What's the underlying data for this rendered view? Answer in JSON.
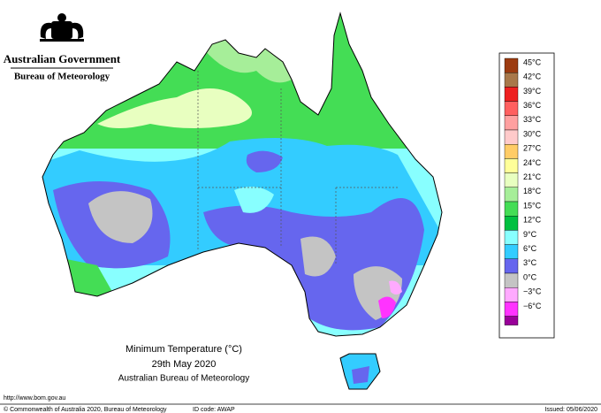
{
  "header": {
    "government": "Australian Government",
    "agency": "Bureau of Meteorology"
  },
  "legend": [
    {
      "label": "45°C",
      "color": "#9c3b10"
    },
    {
      "label": "42°C",
      "color": "#a8784a"
    },
    {
      "label": "39°C",
      "color": "#ee2020"
    },
    {
      "label": "36°C",
      "color": "#ff6060"
    },
    {
      "label": "33°C",
      "color": "#ffa0a0"
    },
    {
      "label": "30°C",
      "color": "#ffcaca"
    },
    {
      "label": "27°C",
      "color": "#ffcc66"
    },
    {
      "label": "24°C",
      "color": "#ffff99"
    },
    {
      "label": "21°C",
      "color": "#e8ffc0"
    },
    {
      "label": "18°C",
      "color": "#a6ee99"
    },
    {
      "label": "15°C",
      "color": "#44dd55"
    },
    {
      "label": "12°C",
      "color": "#00c040"
    },
    {
      "label": "9°C",
      "color": "#88ffff"
    },
    {
      "label": "6°C",
      "color": "#33ccff"
    },
    {
      "label": "3°C",
      "color": "#6666ee"
    },
    {
      "label": "0°C",
      "color": "#c4c4c4"
    },
    {
      "label": "−3°C",
      "color": "#ffaaff"
    },
    {
      "label": "−6°C",
      "color": "#ff33ff"
    }
  ],
  "legend_bottom_color": "#990099",
  "title": {
    "line1": "Minimum Temperature (°C)",
    "line2": "29th May 2020",
    "line3": "Australian Bureau of Meteorology"
  },
  "footer": {
    "url": "http://www.bom.gov.au",
    "copyright": "© Commonwealth of Australia 2020, Bureau of Meteorology",
    "id_code": "ID code: AWAP",
    "issued": "Issued: 05/06/2020"
  }
}
